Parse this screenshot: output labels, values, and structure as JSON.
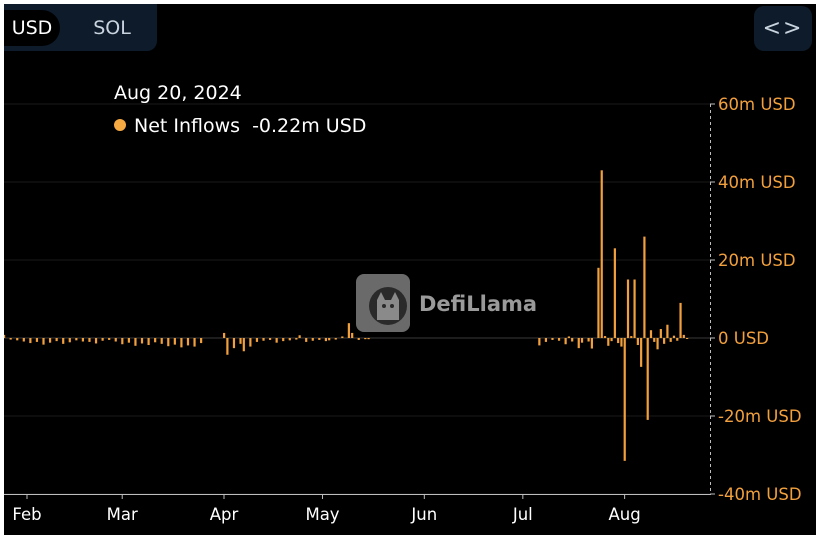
{
  "toggle": {
    "usd_label": "USD",
    "sol_label": "SOL"
  },
  "embed": {
    "label": "<>",
    "icon": "code-brackets-icon"
  },
  "tooltip": {
    "date": "Aug 20, 2024",
    "series_name": "Net Inflows",
    "value": "-0.22m USD",
    "dot_color": "#f7a942"
  },
  "watermark": "DefiLlama",
  "colors": {
    "bar": "#f2a03d",
    "background": "#000000",
    "grid": "#1a1a1a"
  },
  "chart_data": {
    "type": "bar",
    "title": "",
    "xlabel": "",
    "ylabel": "",
    "ylim": [
      -40,
      60
    ],
    "y_unit": "m USD",
    "yticks": [
      60,
      40,
      20,
      0,
      -20,
      -40
    ],
    "ytick_labels": [
      "60m USD",
      "40m USD",
      "20m USD",
      "0 USD",
      "-20m USD",
      "-40m USD"
    ],
    "xtick_labels": [
      "Feb",
      "Mar",
      "Apr",
      "May",
      "Jun",
      "Jul",
      "Aug"
    ],
    "x_range": [
      "2024-01-25",
      "2024-08-27"
    ],
    "grid": true,
    "series": [
      {
        "name": "Net Inflows",
        "points": [
          [
            "2024-01-25",
            0.8
          ],
          [
            "2024-01-27",
            -0.4
          ],
          [
            "2024-01-29",
            -0.6
          ],
          [
            "2024-01-31",
            -0.9
          ],
          [
            "2024-02-02",
            -1.3
          ],
          [
            "2024-02-04",
            -1.0
          ],
          [
            "2024-02-06",
            -1.7
          ],
          [
            "2024-02-08",
            -1.2
          ],
          [
            "2024-02-10",
            -0.8
          ],
          [
            "2024-02-12",
            -1.5
          ],
          [
            "2024-02-14",
            -1.1
          ],
          [
            "2024-02-16",
            -0.6
          ],
          [
            "2024-02-18",
            -0.9
          ],
          [
            "2024-02-20",
            -1.0
          ],
          [
            "2024-02-22",
            -1.4
          ],
          [
            "2024-02-24",
            -0.7
          ],
          [
            "2024-02-26",
            -0.5
          ],
          [
            "2024-02-28",
            -0.9
          ],
          [
            "2024-03-01",
            -1.6
          ],
          [
            "2024-03-03",
            -1.2
          ],
          [
            "2024-03-05",
            -2.0
          ],
          [
            "2024-03-07",
            -1.4
          ],
          [
            "2024-03-09",
            -1.8
          ],
          [
            "2024-03-11",
            -1.1
          ],
          [
            "2024-03-13",
            -1.5
          ],
          [
            "2024-03-15",
            -2.1
          ],
          [
            "2024-03-17",
            -1.7
          ],
          [
            "2024-03-19",
            -2.4
          ],
          [
            "2024-03-21",
            -1.9
          ],
          [
            "2024-03-23",
            -2.2
          ],
          [
            "2024-03-25",
            -1.3
          ],
          [
            "2024-04-01",
            1.3
          ],
          [
            "2024-04-02",
            -4.3
          ],
          [
            "2024-04-04",
            -2.6
          ],
          [
            "2024-04-06",
            -1.5
          ],
          [
            "2024-04-07",
            -3.4
          ],
          [
            "2024-04-09",
            -2.2
          ],
          [
            "2024-04-11",
            -1.0
          ],
          [
            "2024-04-13",
            -0.7
          ],
          [
            "2024-04-15",
            -0.5
          ],
          [
            "2024-04-17",
            -1.2
          ],
          [
            "2024-04-19",
            -0.8
          ],
          [
            "2024-04-21",
            -0.6
          ],
          [
            "2024-04-23",
            -0.4
          ],
          [
            "2024-04-24",
            0.7
          ],
          [
            "2024-04-26",
            -1.0
          ],
          [
            "2024-04-28",
            -0.7
          ],
          [
            "2024-04-30",
            -0.5
          ],
          [
            "2024-05-02",
            -0.8
          ],
          [
            "2024-05-03",
            -0.6
          ],
          [
            "2024-05-05",
            -0.4
          ],
          [
            "2024-05-07",
            0.4
          ],
          [
            "2024-05-09",
            3.8
          ],
          [
            "2024-05-10",
            1.3
          ],
          [
            "2024-05-12",
            -0.5
          ],
          [
            "2024-05-14",
            -0.3
          ],
          [
            "2024-05-15",
            -0.3
          ],
          [
            "2024-07-06",
            -1.9
          ],
          [
            "2024-07-08",
            -1.0
          ],
          [
            "2024-07-10",
            -0.5
          ],
          [
            "2024-07-12",
            -0.7
          ],
          [
            "2024-07-14",
            -1.6
          ],
          [
            "2024-07-15",
            0.4
          ],
          [
            "2024-07-16",
            -0.9
          ],
          [
            "2024-07-18",
            -2.6
          ],
          [
            "2024-07-19",
            -1.2
          ],
          [
            "2024-07-21",
            -0.9
          ],
          [
            "2024-07-22",
            -2.7
          ],
          [
            "2024-07-24",
            18.0
          ],
          [
            "2024-07-25",
            43.0
          ],
          [
            "2024-07-26",
            0.5
          ],
          [
            "2024-07-27",
            -2.0
          ],
          [
            "2024-07-28",
            -0.8
          ],
          [
            "2024-07-29",
            23.0
          ],
          [
            "2024-07-30",
            -1.3
          ],
          [
            "2024-07-31",
            -2.2
          ],
          [
            "2024-08-01",
            -31.5
          ],
          [
            "2024-08-02",
            15.0
          ],
          [
            "2024-08-03",
            0.5
          ],
          [
            "2024-08-04",
            15.0
          ],
          [
            "2024-08-05",
            -1.8
          ],
          [
            "2024-08-06",
            -7.4
          ],
          [
            "2024-08-07",
            26.0
          ],
          [
            "2024-08-08",
            -21.0
          ],
          [
            "2024-08-09",
            2.0
          ],
          [
            "2024-08-10",
            -1.0
          ],
          [
            "2024-08-11",
            -2.9
          ],
          [
            "2024-08-12",
            2.3
          ],
          [
            "2024-08-13",
            -1.5
          ],
          [
            "2024-08-14",
            3.4
          ],
          [
            "2024-08-15",
            -1.0
          ],
          [
            "2024-08-16",
            0.6
          ],
          [
            "2024-08-17",
            -0.7
          ],
          [
            "2024-08-18",
            9.0
          ],
          [
            "2024-08-19",
            0.8
          ],
          [
            "2024-08-20",
            -0.22
          ]
        ]
      }
    ]
  }
}
